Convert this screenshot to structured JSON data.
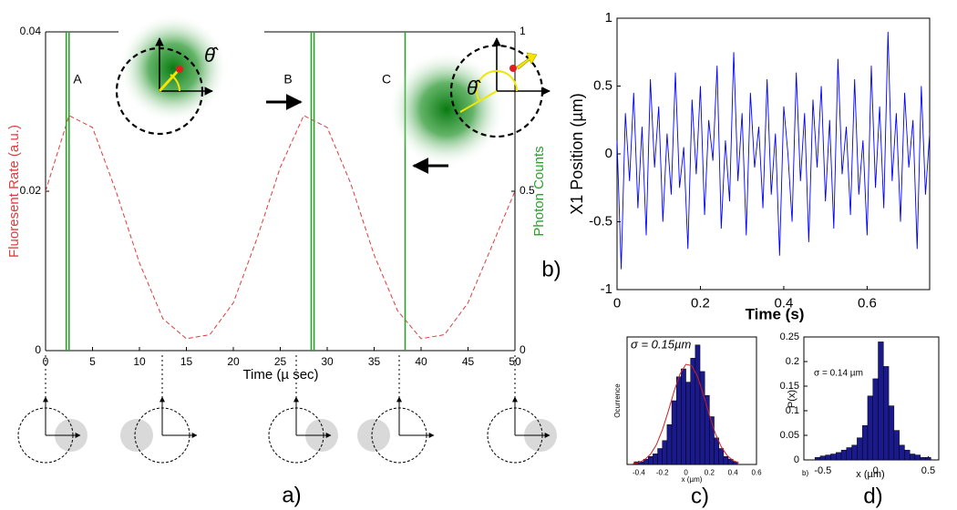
{
  "chart_data": [
    {
      "type": "line",
      "panel_label": "a)",
      "xlabel": "Time (µ sec)",
      "ylabel": "Fluoresent Rate (a.u.)",
      "y2label": "Photon Counts",
      "xlim": [
        0,
        50
      ],
      "xticks": [
        0,
        5,
        10,
        15,
        20,
        25,
        30,
        35,
        40,
        45,
        50
      ],
      "ylim": [
        0,
        0.04
      ],
      "yticks": [
        0,
        0.02,
        0.04
      ],
      "y2lim": [
        0,
        1
      ],
      "y2ticks": [
        0,
        0.5,
        1
      ],
      "annotations": [
        "A",
        "B",
        "C",
        "θ̂",
        "θ̂"
      ],
      "series": [
        {
          "color": "#e03c3c",
          "dash": true,
          "x": [
            0,
            2.5,
            5,
            7.5,
            10,
            12.5,
            15,
            17.5,
            20,
            22.5,
            25,
            27.5,
            30,
            32.5,
            35,
            37.5,
            40,
            42.5,
            45,
            47.5,
            50
          ],
          "values": [
            0.02,
            0.0295,
            0.028,
            0.02,
            0.011,
            0.004,
            0.0015,
            0.002,
            0.006,
            0.014,
            0.023,
            0.0295,
            0.028,
            0.021,
            0.012,
            0.005,
            0.0015,
            0.002,
            0.006,
            0.013,
            0.02
          ]
        },
        {
          "color": "#2ca02c",
          "axis": "y2",
          "drawstyle": "stems",
          "x": [
            2.2,
            2.5,
            28.3,
            28.6,
            38.3
          ],
          "values": [
            1,
            1,
            1,
            1,
            1
          ]
        }
      ]
    },
    {
      "type": "line",
      "panel_label": "b)",
      "xlabel": "Time (s)",
      "ylabel": "X1 Position (µm)",
      "xlim": [
        0,
        0.75
      ],
      "xticks": [
        0,
        0.2,
        0.4,
        0.6
      ],
      "ylim": [
        -1,
        1
      ],
      "yticks": [
        -1,
        -0.5,
        0,
        0.5,
        1
      ],
      "series": [
        {
          "color": "#0000ff",
          "x": [
            0,
            0.01,
            0.02,
            0.03,
            0.04,
            0.05,
            0.06,
            0.07,
            0.08,
            0.09,
            0.1,
            0.11,
            0.12,
            0.13,
            0.14,
            0.15,
            0.16,
            0.17,
            0.18,
            0.19,
            0.2,
            0.21,
            0.22,
            0.23,
            0.24,
            0.25,
            0.26,
            0.27,
            0.28,
            0.29,
            0.3,
            0.31,
            0.32,
            0.33,
            0.34,
            0.35,
            0.36,
            0.37,
            0.38,
            0.39,
            0.4,
            0.41,
            0.42,
            0.43,
            0.44,
            0.45,
            0.46,
            0.47,
            0.48,
            0.49,
            0.5,
            0.51,
            0.52,
            0.53,
            0.54,
            0.55,
            0.56,
            0.57,
            0.58,
            0.59,
            0.6,
            0.61,
            0.62,
            0.63,
            0.64,
            0.65,
            0.66,
            0.67,
            0.68,
            0.69,
            0.7,
            0.71,
            0.72,
            0.73,
            0.74,
            0.75
          ],
          "values": [
            0.1,
            -0.85,
            0.3,
            -0.2,
            0.45,
            -0.4,
            0.2,
            -0.6,
            0.55,
            -0.1,
            0.35,
            -0.5,
            0.15,
            -0.3,
            0.6,
            -0.25,
            0.05,
            -0.7,
            0.4,
            -0.15,
            0.5,
            -0.45,
            0.25,
            -0.05,
            0.65,
            -0.55,
            0.1,
            -0.35,
            0.75,
            -0.2,
            0.3,
            -0.6,
            0.45,
            -0.1,
            0.2,
            -0.4,
            0.55,
            -0.3,
            0.15,
            -0.75,
            0.35,
            0.0,
            -0.5,
            0.6,
            -0.2,
            0.3,
            -0.65,
            0.4,
            -0.1,
            0.5,
            -0.35,
            0.25,
            -0.55,
            0.7,
            -0.15,
            0.2,
            -0.45,
            0.55,
            -0.3,
            0.1,
            -0.6,
            0.65,
            -0.25,
            0.35,
            -0.4,
            0.9,
            -0.2,
            0.3,
            -0.5,
            0.45,
            -0.1,
            0.25,
            -0.7,
            0.5,
            -0.3,
            0.15
          ]
        }
      ]
    },
    {
      "type": "histogram",
      "panel_label": "c)",
      "xlabel": "x (µm)",
      "ylabel": "Ocurrence",
      "annotations": [
        "σ = 0.15µm"
      ],
      "xlim": [
        -0.5,
        0.6
      ],
      "xticks": [
        -0.4,
        -0.2,
        0,
        0.2,
        0.4,
        0.6
      ],
      "ylim": [
        0,
        48
      ],
      "color": "#1a1a8c",
      "bins": [
        -0.44,
        -0.4,
        -0.36,
        -0.32,
        -0.28,
        -0.24,
        -0.2,
        -0.16,
        -0.12,
        -0.08,
        -0.04,
        0,
        0.04,
        0.08,
        0.12,
        0.16,
        0.2,
        0.24,
        0.28,
        0.32,
        0.36,
        0.4,
        0.44
      ],
      "counts": [
        1,
        1,
        2,
        3,
        4,
        6,
        9,
        15,
        24,
        33,
        36,
        31,
        40,
        45,
        35,
        26,
        18,
        10,
        6,
        3,
        2,
        1
      ],
      "fit": {
        "color": "#d02020",
        "x": [
          -0.45,
          -0.4,
          -0.35,
          -0.3,
          -0.25,
          -0.2,
          -0.15,
          -0.1,
          -0.05,
          0,
          0.05,
          0.1,
          0.15,
          0.2,
          0.25,
          0.3,
          0.35,
          0.4,
          0.45
        ],
        "values": [
          0.28,
          0.75,
          1.8,
          3.9,
          7.5,
          13.0,
          20.0,
          27.6,
          34.1,
          37.7,
          37.2,
          33.0,
          26.1,
          18.5,
          11.7,
          6.7,
          3.4,
          1.5,
          0.6
        ]
      }
    },
    {
      "type": "histogram",
      "panel_label": "d)",
      "sublabel": "b)",
      "xlabel": "x (µm)",
      "ylabel": "P(x)",
      "annotations": [
        "σ = 0.14 µm"
      ],
      "xlim": [
        -0.68,
        0.6
      ],
      "xticks": [
        -0.5,
        0,
        0.5
      ],
      "ylim": [
        0,
        0.25
      ],
      "yticks": [
        0,
        0.05,
        0.1,
        0.15,
        0.2,
        0.25
      ],
      "color": "#1a1a8c",
      "bins": [
        -0.575,
        -0.525,
        -0.475,
        -0.425,
        -0.375,
        -0.325,
        -0.275,
        -0.225,
        -0.175,
        -0.125,
        -0.075,
        -0.025,
        0.025,
        0.075,
        0.125,
        0.175,
        0.225,
        0.275,
        0.325,
        0.375,
        0.425,
        0.475,
        0.525
      ],
      "counts": [
        0.005,
        0.008,
        0.01,
        0.012,
        0.015,
        0.02,
        0.025,
        0.03,
        0.045,
        0.07,
        0.13,
        0.165,
        0.24,
        0.19,
        0.11,
        0.06,
        0.03,
        0.02,
        0.012,
        0.01,
        0.005,
        0.005
      ]
    }
  ]
}
